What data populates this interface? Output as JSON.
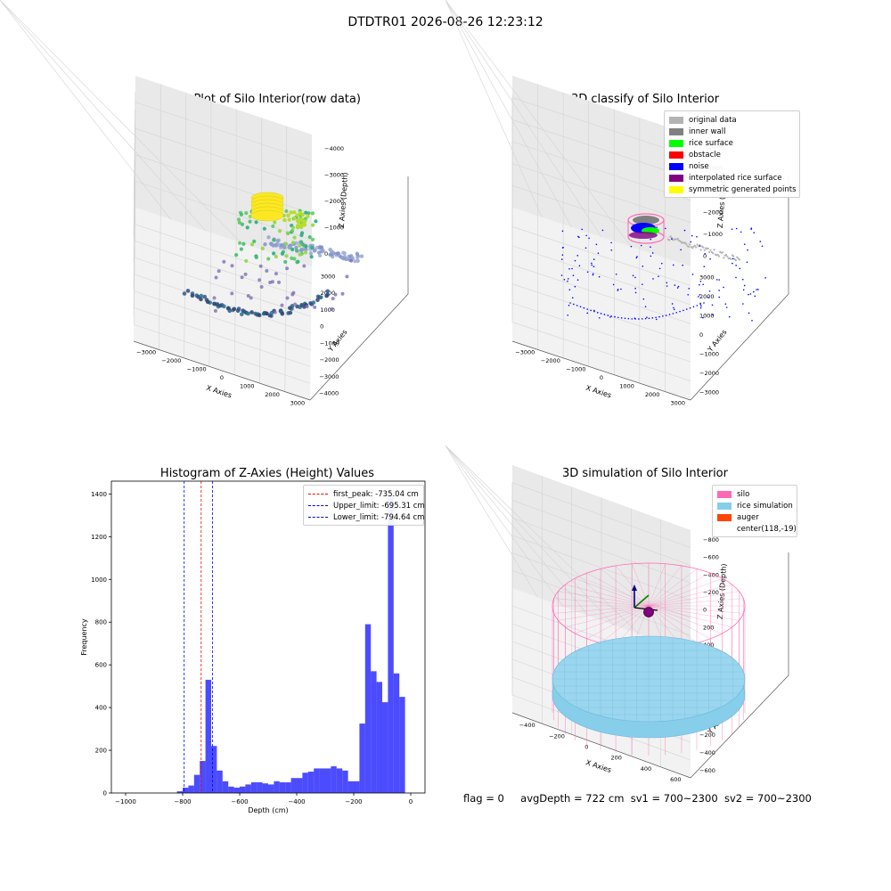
{
  "suptitle": "DTDTR01 2026-08-26 12:23:12",
  "plots": {
    "raw": {
      "title": "3D Plot of Silo Interior(row data)",
      "xlabel": "X Axies",
      "ylabel": "Y Axies",
      "zlabel": "Z Axies (Depth)"
    },
    "classify": {
      "title": "3D classify of Silo Interior",
      "xlabel": "X Axies",
      "ylabel": "Y Axies",
      "zlabel": "Z Axies (Depth)"
    },
    "sim": {
      "title": "3D simulation of Silo Interior",
      "xlabel": "X Axies",
      "ylabel": "Y Axies",
      "zlabel": "Z Axies (Depth)"
    }
  },
  "classify_legend": [
    {
      "label": "original data",
      "color": "#b3b3b3"
    },
    {
      "label": "inner wall",
      "color": "#808080"
    },
    {
      "label": "rice surface",
      "color": "#00ff00"
    },
    {
      "label": "obstacle",
      "color": "#ff0000"
    },
    {
      "label": "noise",
      "color": "#0000ff"
    },
    {
      "label": "interpolated rice surface",
      "color": "#800080"
    },
    {
      "label": "symmetric generated points",
      "color": "#ffff00"
    }
  ],
  "sim_legend": [
    {
      "label": "silo",
      "color": "#ff69b4"
    },
    {
      "label": "rice simulation",
      "color": "#87ceeb"
    },
    {
      "label": "auger",
      "color": "#ff4500"
    },
    {
      "label": "center(118,-19)",
      "color": ""
    }
  ],
  "status": {
    "flag": "flag = 0",
    "avg": "avgDepth = 722 cm",
    "sv1": "sv1 = 700~2300",
    "sv2": "sv2 = 700~2300"
  },
  "chart_data": [
    {
      "type": "histogram",
      "title": "Histogram of Z-Axies (Height) Values",
      "xlabel": "Depth (cm)",
      "ylabel": "Frequency",
      "xlim": [
        -1050,
        50
      ],
      "ylim": [
        0,
        1460
      ],
      "xticks": [
        -1000,
        -800,
        -600,
        -400,
        -200,
        0
      ],
      "yticks": [
        0,
        200,
        400,
        600,
        800,
        1000,
        1200,
        1400
      ],
      "bar_color": "#0000ff",
      "bin_width": 20,
      "bin_starts": [
        -820,
        -800,
        -780,
        -760,
        -740,
        -720,
        -700,
        -680,
        -660,
        -640,
        -620,
        -600,
        -580,
        -560,
        -540,
        -520,
        -500,
        -480,
        -460,
        -440,
        -420,
        -400,
        -380,
        -360,
        -340,
        -320,
        -300,
        -280,
        -260,
        -240,
        -220,
        -200,
        -180,
        -160,
        -140,
        -120,
        -100,
        -80,
        -60,
        -40,
        -20
      ],
      "counts": [
        8,
        25,
        35,
        85,
        150,
        530,
        220,
        105,
        55,
        30,
        25,
        30,
        40,
        50,
        50,
        45,
        40,
        55,
        50,
        50,
        70,
        70,
        95,
        100,
        115,
        115,
        115,
        125,
        115,
        105,
        55,
        55,
        325,
        790,
        570,
        520,
        425,
        1395,
        560,
        450,
        0
      ],
      "lines": [
        {
          "name": "first_peak: -735.04 cm",
          "x": -735.04,
          "color": "#ff0000"
        },
        {
          "name": "Upper_limit: -695.31 cm",
          "x": -695.31,
          "color": "#0000ff"
        },
        {
          "name": "Lower_limit: -794.64 cm",
          "x": -794.64,
          "color": "#0000ff"
        }
      ],
      "legend_position": "upper right"
    },
    {
      "type": "scatter3d",
      "title": "3D Plot of Silo Interior(row data)",
      "xticks": [
        -3000,
        -2000,
        -1000,
        0,
        1000,
        2000,
        3000
      ],
      "yticks": [
        -4000,
        -3000,
        -2000,
        -1000,
        0,
        1000,
        2000,
        3000
      ],
      "zticks": [
        0,
        -1000,
        -2000,
        -3000,
        -4000
      ],
      "colormap": "viridis"
    },
    {
      "type": "scatter3d",
      "title": "3D classify of Silo Interior",
      "xticks": [
        -3000,
        -2000,
        -1000,
        0,
        1000,
        2000,
        3000
      ],
      "yticks": [
        -3000,
        -2000,
        -1000,
        0,
        1000,
        2000,
        3000
      ],
      "zticks": [
        0,
        -1000,
        -2000,
        -3000,
        -4000,
        -5000
      ],
      "legend_position": "upper right"
    },
    {
      "type": "surface3d",
      "title": "3D simulation of Silo Interior",
      "xticks": [
        -400,
        -200,
        0,
        200,
        400,
        600
      ],
      "yticks": [
        -600,
        -400,
        -200,
        0,
        200,
        400,
        600
      ],
      "zticks": [
        400,
        200,
        0,
        -200,
        -400,
        -600,
        -800
      ],
      "legend_position": "upper right"
    }
  ]
}
